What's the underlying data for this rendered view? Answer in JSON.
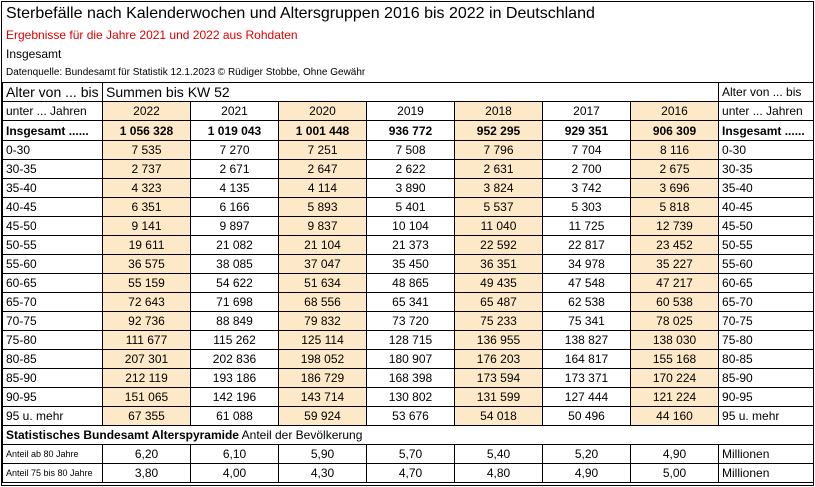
{
  "header": {
    "title": "Sterbefälle nach Kalenderwochen und Altersgruppen 2016 bis 2022 in Deutschland",
    "subtitle": "Ergebnisse für die Jahre 2021 und 2022 aus Rohdaten",
    "scope": "Insgesamt",
    "source": "Datenquelle: Bundesamt für Statistik 12.1.2023 © Rüdiger Stobbe, Ohne Gewähr"
  },
  "table": {
    "left_head": [
      "Alter von ... bis",
      "unter ... Jahren"
    ],
    "span_head": "Summen bis KW 52",
    "right_head": [
      "Alter von ... bis",
      "unter ... Jahren"
    ],
    "years": [
      "2022",
      "2021",
      "2020",
      "2019",
      "2018",
      "2017",
      "2016"
    ],
    "highlighted": [
      true,
      false,
      true,
      false,
      true,
      false,
      true
    ],
    "highlight_color": "#fde9c8",
    "rows": [
      {
        "label": "Insgesamt ......",
        "values": [
          "1 056 328",
          "1 019 043",
          "1 001 448",
          "936 772",
          "952 295",
          "929 351",
          "906 309"
        ],
        "label_right": "Insgesamt ......",
        "bold": true
      },
      {
        "label": "0-30",
        "values": [
          "7 535",
          "7 270",
          "7 251",
          "7 508",
          "7 796",
          "7 704",
          "8 116"
        ],
        "label_right": "0-30"
      },
      {
        "label": "30-35",
        "values": [
          "2 737",
          "2 671",
          "2 647",
          "2 622",
          "2 631",
          "2 700",
          "2 675"
        ],
        "label_right": "30-35"
      },
      {
        "label": "35-40",
        "values": [
          "4 323",
          "4 135",
          "4 114",
          "3 890",
          "3 824",
          "3 742",
          "3 696"
        ],
        "label_right": "35-40"
      },
      {
        "label": "40-45",
        "values": [
          "6 351",
          "6 166",
          "5 893",
          "5 401",
          "5 537",
          "5 303",
          "5 818"
        ],
        "label_right": "40-45"
      },
      {
        "label": "45-50",
        "values": [
          "9 141",
          "9 897",
          "9 837",
          "10 104",
          "11 040",
          "11 725",
          "12 739"
        ],
        "label_right": "45-50"
      },
      {
        "label": "50-55",
        "values": [
          "19 611",
          "21 082",
          "21 104",
          "21 373",
          "22 592",
          "22 817",
          "23 452"
        ],
        "label_right": "50-55"
      },
      {
        "label": "55-60",
        "values": [
          "36 575",
          "38 085",
          "37 047",
          "35 450",
          "36 351",
          "34 978",
          "35 227"
        ],
        "label_right": "55-60"
      },
      {
        "label": "60-65",
        "values": [
          "55 159",
          "54 622",
          "51 634",
          "48 865",
          "49 435",
          "47 548",
          "47 217"
        ],
        "label_right": "60-65"
      },
      {
        "label": "65-70",
        "values": [
          "72 643",
          "71 698",
          "68 556",
          "65 341",
          "65 487",
          "62 538",
          "60 538"
        ],
        "label_right": "65-70"
      },
      {
        "label": "70-75",
        "values": [
          "92 736",
          "88 849",
          "79 832",
          "73 720",
          "75 233",
          "75 341",
          "78 025"
        ],
        "label_right": "70-75"
      },
      {
        "label": "75-80",
        "values": [
          "111 677",
          "115 262",
          "125 114",
          "128 715",
          "136 955",
          "138 827",
          "138 030"
        ],
        "label_right": "75-80"
      },
      {
        "label": "80-85",
        "values": [
          "207 301",
          "202 836",
          "198 052",
          "180 907",
          "176 203",
          "164 817",
          "155 168"
        ],
        "label_right": "80-85"
      },
      {
        "label": "85-90",
        "values": [
          "212 119",
          "193 186",
          "186 729",
          "168 398",
          "173 594",
          "173 371",
          "170 224"
        ],
        "label_right": "85-90"
      },
      {
        "label": "90-95",
        "values": [
          "151 065",
          "142 196",
          "143 714",
          "130 802",
          "131 599",
          "127 444",
          "121 224"
        ],
        "label_right": "90-95"
      },
      {
        "label": "95 u. mehr",
        "values": [
          "67 355",
          "61 088",
          "59 924",
          "53 676",
          "54 018",
          "50 496",
          "44 160"
        ],
        "label_right": "95 u. mehr"
      }
    ]
  },
  "population": {
    "title_bold": "Statistisches Bundesamt Alterspyramide",
    "title_rest": "Anteil der Bevölkerung",
    "rows": [
      {
        "label": "Anteil ab 80 Jahre",
        "values": [
          "6,20",
          "6,10",
          "5,90",
          "5,70",
          "5,40",
          "5,20",
          "4,90"
        ],
        "unit": "Millionen"
      },
      {
        "label": "Anteil 75 bis 80 Jahre",
        "values": [
          "3,80",
          "4,00",
          "4,30",
          "4,70",
          "4,80",
          "4,90",
          "5,00"
        ],
        "unit": "Millionen"
      }
    ]
  }
}
